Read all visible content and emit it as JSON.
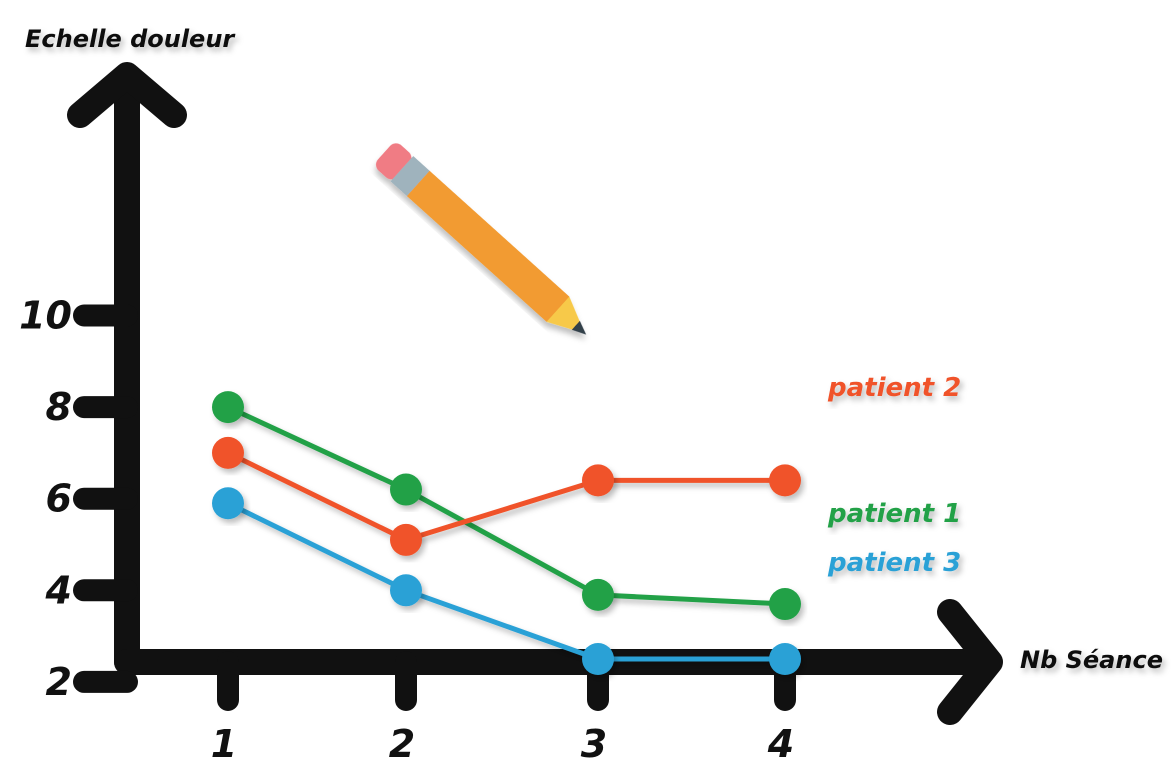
{
  "chart_data": {
    "type": "line",
    "ylabel": "Echelle douleur",
    "xlabel": "Nb Séance",
    "x": [
      1,
      2,
      3,
      4
    ],
    "x_tick_labels": [
      "1",
      "2",
      "3",
      "4"
    ],
    "y_ticks": [
      2,
      4,
      6,
      8,
      10
    ],
    "y_tick_labels": [
      "2",
      "4",
      "6",
      "8",
      "10"
    ],
    "ylim": [
      1,
      13
    ],
    "grid": false,
    "legend": "labels at end of each line",
    "series": [
      {
        "name": "patient 1",
        "color": "#21a147",
        "values": [
          8,
          6.2,
          3.9,
          3.7
        ]
      },
      {
        "name": "patient 2",
        "color": "#f0532a",
        "values": [
          7,
          5.1,
          6.4,
          6.4
        ]
      },
      {
        "name": "patient 3",
        "color": "#2aa1d6",
        "values": [
          5.9,
          4,
          2.5,
          2.5
        ]
      }
    ]
  },
  "decoration": {
    "pencil_icon": "pencil-icon",
    "colors": {
      "pencil_body": "#f29b30",
      "pencil_tip": "#f7c94a",
      "pencil_eraser": "#f07c84",
      "pencil_band": "#9fb3bd",
      "axis": "#111111"
    }
  }
}
